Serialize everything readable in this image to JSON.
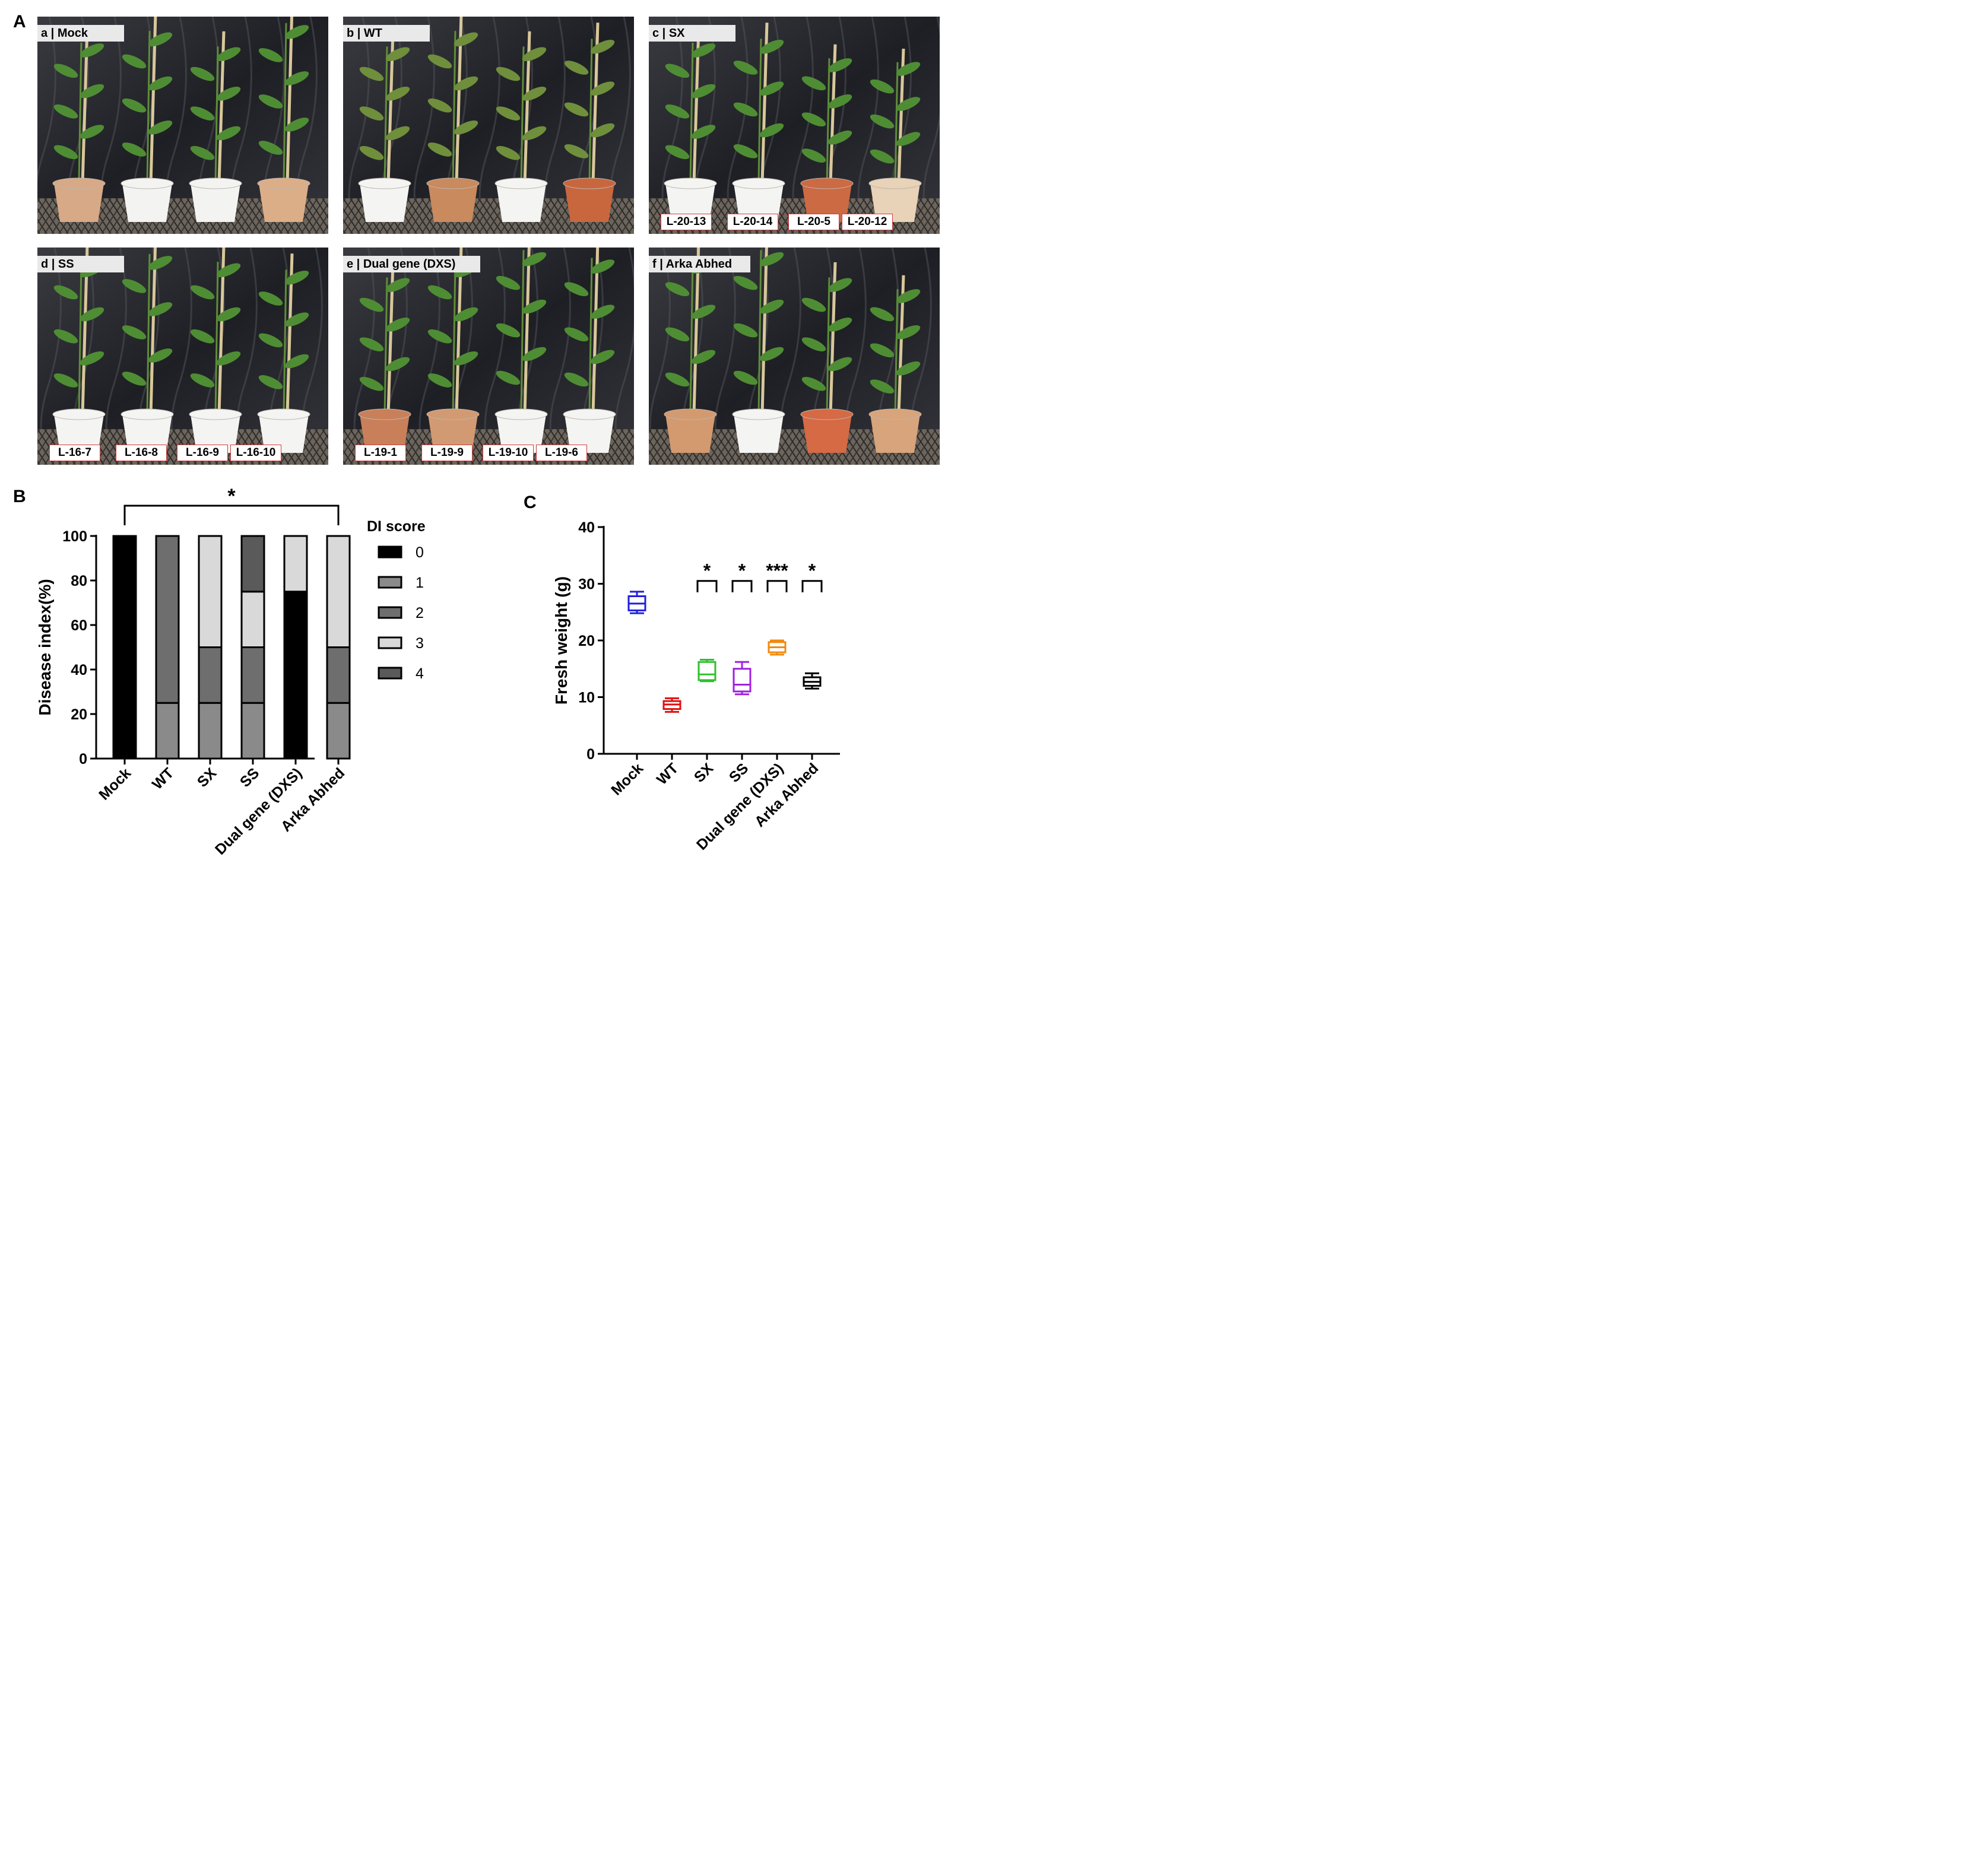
{
  "panel_labels": [
    "A",
    "B",
    "C"
  ],
  "photos": [
    {
      "title": "a | Mock",
      "lines": []
    },
    {
      "title": "b | WT",
      "lines": []
    },
    {
      "title": "c | SX",
      "lines": [
        "L-20-13",
        "L-20-14",
        "L-20-5",
        "L-20-12"
      ]
    },
    {
      "title": "d | SS",
      "lines": [
        "L-16-7",
        "L-16-8",
        "L-16-9",
        "L-16-10"
      ]
    },
    {
      "title": "e | Dual gene (DXS)",
      "lines": [
        "L-19-1",
        "L-19-9",
        "L-19-10",
        "L-19-6"
      ]
    },
    {
      "title": "f | Arka Abhed",
      "lines": []
    }
  ],
  "chart_data": [
    {
      "type": "bar",
      "stacked": true,
      "categories": [
        "Mock",
        "WT",
        "SX",
        "SS",
        "Dual gene (DXS)",
        "Arka Abhed"
      ],
      "ylabel": "Disease index(%)",
      "ylim": [
        0,
        100
      ],
      "yticks": [
        0,
        20,
        40,
        60,
        80,
        100
      ],
      "legend_title": "DI score",
      "legend_position": "right",
      "series": [
        {
          "name": "0",
          "color": "#000000",
          "values": [
            100,
            0,
            0,
            0,
            75,
            0
          ]
        },
        {
          "name": "1",
          "color": "#8a8a8a",
          "values": [
            0,
            25,
            25,
            25,
            0,
            25
          ]
        },
        {
          "name": "2",
          "color": "#6e6e6e",
          "values": [
            0,
            75,
            25,
            25,
            0,
            25
          ]
        },
        {
          "name": "3",
          "color": "#d9d9d9",
          "values": [
            0,
            0,
            50,
            25,
            25,
            50
          ]
        },
        {
          "name": "4",
          "color": "#5a5a5a",
          "values": [
            0,
            0,
            0,
            25,
            0,
            0
          ]
        }
      ],
      "segment_lines": [
        [],
        [
          25
        ],
        [
          25,
          50
        ],
        [
          25,
          50,
          75
        ],
        [
          75
        ],
        [
          25,
          50
        ]
      ],
      "significance": {
        "label": "*",
        "from": "Mock",
        "to": "Arka Abhed"
      }
    },
    {
      "type": "box",
      "categories": [
        "Mock",
        "WT",
        "SX",
        "SS",
        "Dual gene (DXS)",
        "Arka Abhed"
      ],
      "ylabel": "Fresh weight (g)",
      "ylim": [
        0,
        40
      ],
      "yticks": [
        0,
        10,
        20,
        30,
        40
      ],
      "boxes": [
        {
          "color": "#1f1fdc",
          "min": 24.8,
          "q1": 25.3,
          "median": 26.5,
          "q3": 27.8,
          "max": 28.6
        },
        {
          "color": "#e01010",
          "min": 7.4,
          "q1": 7.9,
          "median": 8.7,
          "q3": 9.3,
          "max": 9.8
        },
        {
          "color": "#2ec02e",
          "min": 12.8,
          "q1": 13.0,
          "median": 14.0,
          "q3": 16.2,
          "max": 16.6
        },
        {
          "color": "#a020e0",
          "min": 10.5,
          "q1": 11.0,
          "median": 12.2,
          "q3": 15.0,
          "max": 16.2
        },
        {
          "color": "#f08a10",
          "min": 17.5,
          "q1": 17.9,
          "median": 18.8,
          "q3": 19.7,
          "max": 20.0
        },
        {
          "color": "#000000",
          "min": 11.5,
          "q1": 12.0,
          "median": 12.7,
          "q3": 13.5,
          "max": 14.2
        }
      ],
      "significance": [
        {
          "category": "SX",
          "label": "*"
        },
        {
          "category": "SS",
          "label": "*"
        },
        {
          "category": "Dual gene (DXS)",
          "label": "***"
        },
        {
          "category": "Arka Abhed",
          "label": "*"
        }
      ]
    }
  ]
}
